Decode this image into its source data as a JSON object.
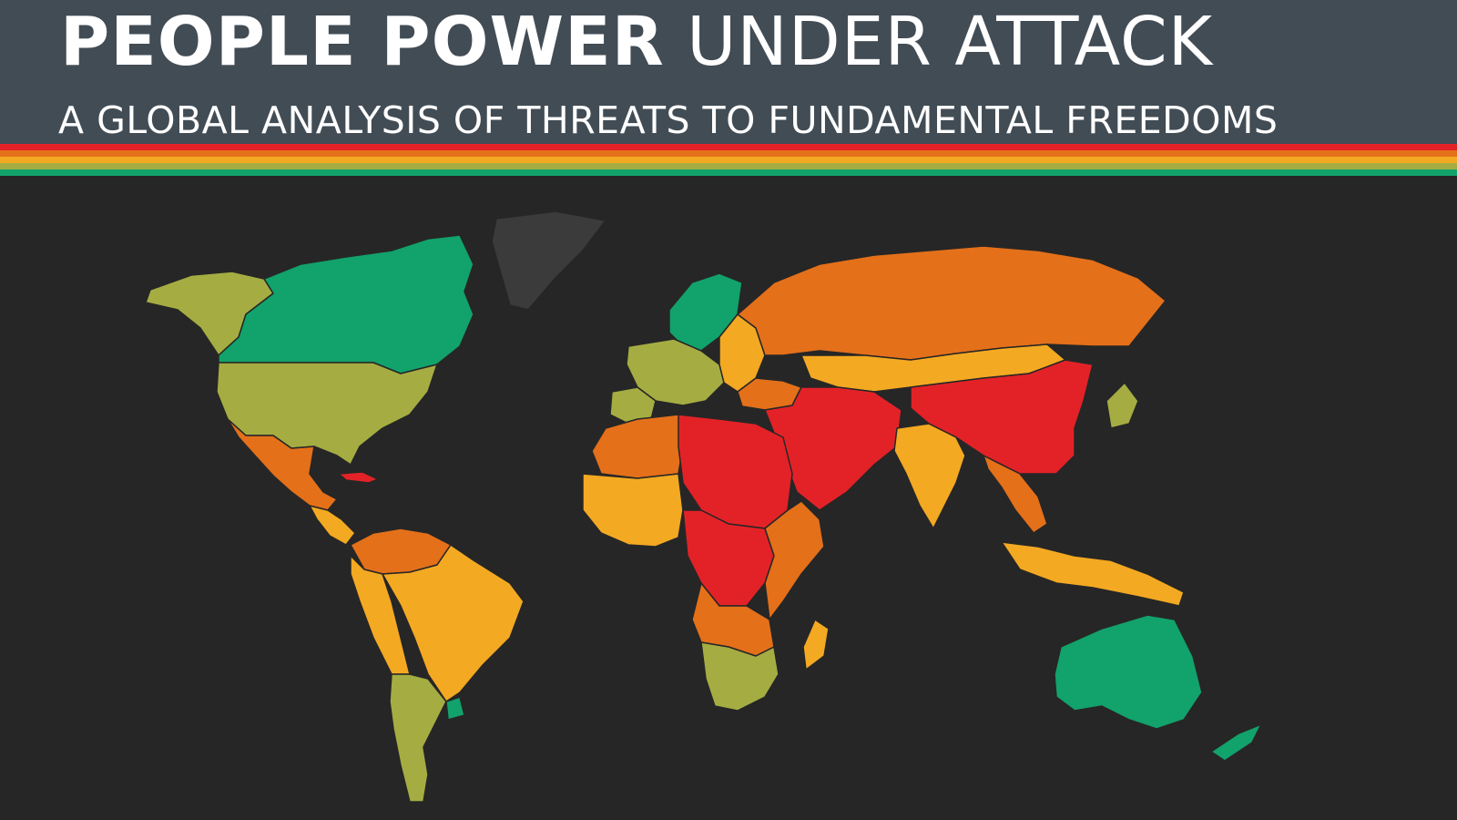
{
  "header": {
    "title_bold": "PEOPLE POWER",
    "title_light": "UNDER ATTACK",
    "subtitle": "A GLOBAL ANALYSIS OF THREATS TO FUNDAMENTAL FREEDOMS"
  },
  "colors": {
    "header_bg": "#424c55",
    "map_bg": "#262626",
    "stripes": [
      "#e32227",
      "#e4701a",
      "#f4a922",
      "#a5ad42",
      "#12a26b"
    ],
    "open": "#12a26b",
    "narrowed": "#a5ad42",
    "obstructed": "#f4a922",
    "repressed": "#e4701a",
    "closed": "#e32227",
    "no_data": "#3b3b3b"
  },
  "map": {
    "regions": [
      {
        "name": "alaska",
        "rating": "narrowed"
      },
      {
        "name": "canada",
        "rating": "open"
      },
      {
        "name": "greenland",
        "rating": "no_data"
      },
      {
        "name": "usa",
        "rating": "narrowed"
      },
      {
        "name": "mexico",
        "rating": "repressed"
      },
      {
        "name": "central-america",
        "rating": "obstructed"
      },
      {
        "name": "cuba",
        "rating": "closed"
      },
      {
        "name": "northern-south-america",
        "rating": "repressed"
      },
      {
        "name": "brazil",
        "rating": "obstructed"
      },
      {
        "name": "andes",
        "rating": "obstructed"
      },
      {
        "name": "southern-cone",
        "rating": "narrowed"
      },
      {
        "name": "uruguay",
        "rating": "open"
      },
      {
        "name": "scandinavia",
        "rating": "open"
      },
      {
        "name": "western-europe",
        "rating": "narrowed"
      },
      {
        "name": "iberia",
        "rating": "narrowed"
      },
      {
        "name": "eastern-europe",
        "rating": "obstructed"
      },
      {
        "name": "russia",
        "rating": "repressed"
      },
      {
        "name": "turkey",
        "rating": "repressed"
      },
      {
        "name": "kazakhstan-mongolia",
        "rating": "obstructed"
      },
      {
        "name": "china",
        "rating": "closed"
      },
      {
        "name": "middle-east",
        "rating": "closed"
      },
      {
        "name": "north-africa-west",
        "rating": "repressed"
      },
      {
        "name": "libya-egypt-sudan",
        "rating": "closed"
      },
      {
        "name": "west-africa",
        "rating": "obstructed"
      },
      {
        "name": "central-africa",
        "rating": "closed"
      },
      {
        "name": "east-africa",
        "rating": "repressed"
      },
      {
        "name": "angola-zambia",
        "rating": "repressed"
      },
      {
        "name": "southern-africa",
        "rating": "narrowed"
      },
      {
        "name": "madagascar",
        "rating": "obstructed"
      },
      {
        "name": "india",
        "rating": "obstructed"
      },
      {
        "name": "southeast-asia",
        "rating": "repressed"
      },
      {
        "name": "indonesia",
        "rating": "obstructed"
      },
      {
        "name": "japan",
        "rating": "narrowed"
      },
      {
        "name": "australia",
        "rating": "open"
      },
      {
        "name": "new-zealand",
        "rating": "open"
      }
    ]
  }
}
